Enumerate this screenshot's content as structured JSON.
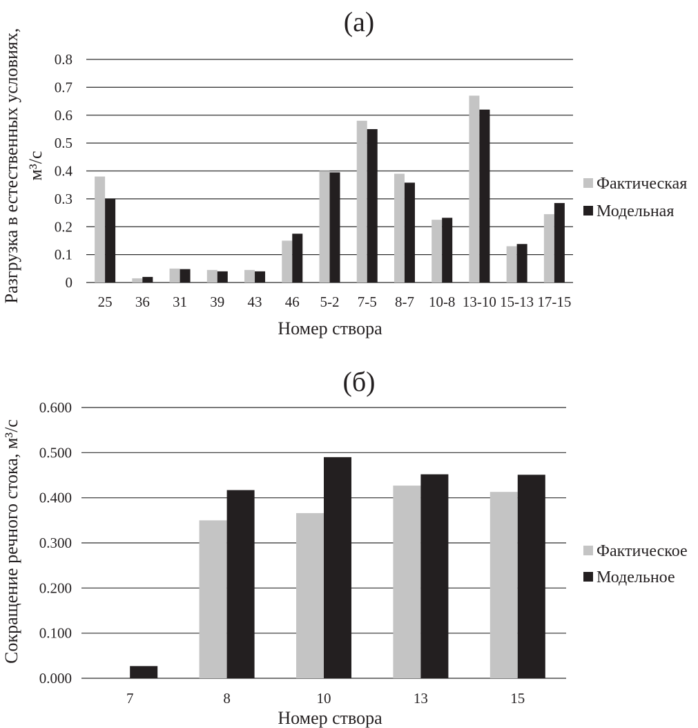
{
  "colors": {
    "actual": "#c4c4c4",
    "model": "#231f20",
    "grid": "#2b2b2b"
  },
  "chart_data": [
    {
      "type": "bar",
      "title": "(a)",
      "xlabel": "Номер створа",
      "ylabel_lines": [
        "Разгрузка в естественных условиях,",
        "м³/с"
      ],
      "ylim": [
        0,
        0.8
      ],
      "yticks": [
        "0",
        "0.1",
        "0.2",
        "0.3",
        "0.4",
        "0.5",
        "0.6",
        "0.7",
        "0.8"
      ],
      "grid": true,
      "legend": "right",
      "categories": [
        "25",
        "36",
        "31",
        "39",
        "43",
        "46",
        "5-2",
        "7-5",
        "8-7",
        "10-8",
        "13-10",
        "15-13",
        "17-15"
      ],
      "series": [
        {
          "name": "Фактическая",
          "values": [
            0.38,
            0.015,
            0.05,
            0.045,
            0.045,
            0.15,
            0.4,
            0.58,
            0.39,
            0.225,
            0.67,
            0.13,
            0.245
          ]
        },
        {
          "name": "Модельная",
          "values": [
            0.3,
            0.02,
            0.048,
            0.04,
            0.04,
            0.175,
            0.395,
            0.55,
            0.358,
            0.232,
            0.62,
            0.138,
            0.285
          ]
        }
      ]
    },
    {
      "type": "bar",
      "title": "(б)",
      "xlabel": "Номер створа",
      "ylabel_lines": [
        "Сокращение речного стока, м³/с"
      ],
      "ylim": [
        0,
        0.6
      ],
      "yticks": [
        "0.000",
        "0.100",
        "0.200",
        "0.300",
        "0.400",
        "0.500",
        "0.600"
      ],
      "grid": true,
      "legend": "right",
      "categories": [
        "7",
        "8",
        "10",
        "13",
        "15"
      ],
      "series": [
        {
          "name": "Фактическое",
          "values": [
            0,
            0.35,
            0.366,
            0.427,
            0.413
          ]
        },
        {
          "name": "Модельное",
          "values": [
            0.027,
            0.417,
            0.49,
            0.452,
            0.451
          ]
        }
      ]
    }
  ]
}
